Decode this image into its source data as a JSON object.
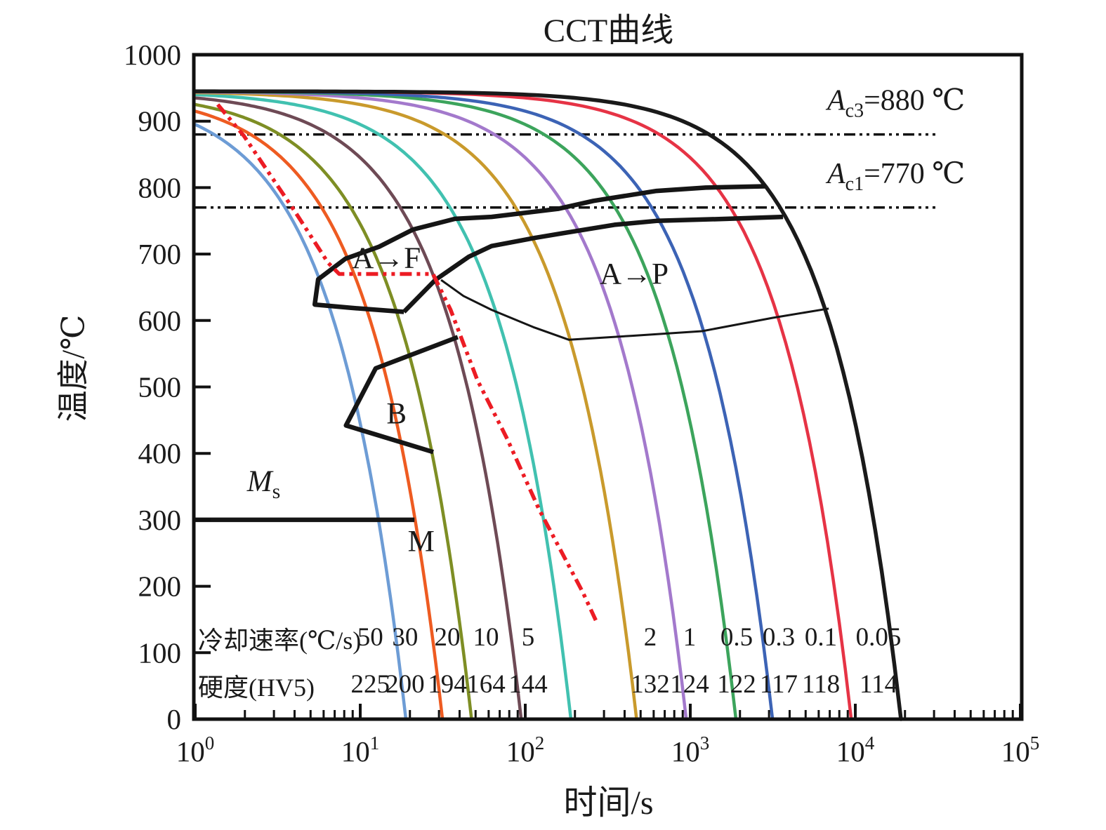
{
  "title": "CCT曲线",
  "chart_data": {
    "type": "line",
    "title": "CCT曲线",
    "xlabel": "时间/s",
    "ylabel": "温度/℃",
    "x_scale": "log",
    "xlim": [
      1,
      100000
    ],
    "ylim": [
      0,
      1000
    ],
    "y_tick_step": 100,
    "x_tick_exponents": [
      0,
      1,
      2,
      3,
      4,
      5
    ],
    "grid": false,
    "legend_position": "none",
    "initial_temperature_c": 945,
    "reference_lines": [
      {
        "id": "Ac3",
        "label_main": "A",
        "label_sub": "c3",
        "label_rest": "=880 ℃",
        "temperature_c": 880
      },
      {
        "id": "Ac1",
        "label_main": "A",
        "label_sub": "c1",
        "label_rest": "=770 ℃",
        "temperature_c": 770
      }
    ],
    "rate_row_label": "冷却速率(℃/s)",
    "hardness_row_label": "硬度(HV5)",
    "cooling_curves": [
      {
        "rate_c_per_s": 50,
        "rate_display": "50",
        "hardness_hv5": "225",
        "color": "#6D9CD5",
        "label_t_s": 11.5
      },
      {
        "rate_c_per_s": 30,
        "rate_display": "30",
        "hardness_hv5": "200",
        "color": "#EE5B21",
        "label_t_s": 18.7
      },
      {
        "rate_c_per_s": 20,
        "rate_display": "20",
        "hardness_hv5": "194",
        "color": "#7E8E24",
        "label_t_s": 33.7
      },
      {
        "rate_c_per_s": 10,
        "rate_display": "10",
        "hardness_hv5": "164",
        "color": "#6E4A55",
        "label_t_s": 57.8
      },
      {
        "rate_c_per_s": 5,
        "rate_display": "5",
        "hardness_hv5": "144",
        "color": "#41C1B0",
        "label_t_s": 104
      },
      {
        "rate_c_per_s": 2,
        "rate_display": "2",
        "hardness_hv5": "132",
        "color": "#C99A2C",
        "label_t_s": 572
      },
      {
        "rate_c_per_s": 1,
        "rate_display": "1",
        "hardness_hv5": "124",
        "color": "#A379CC",
        "label_t_s": 990
      },
      {
        "rate_c_per_s": 0.5,
        "rate_display": "0.5",
        "hardness_hv5": "122",
        "color": "#3CA45C",
        "label_t_s": 1910
      },
      {
        "rate_c_per_s": 0.3,
        "rate_display": "0.3",
        "hardness_hv5": "117",
        "color": "#3C63B5",
        "label_t_s": 3437
      },
      {
        "rate_c_per_s": 0.1,
        "rate_display": "0.1",
        "hardness_hv5": "118",
        "color": "#E63345",
        "label_t_s": 6188
      },
      {
        "rate_c_per_s": 0.05,
        "rate_display": "0.05",
        "hardness_hv5": "114",
        "color": "#1A1A1A",
        "label_t_s": 13820
      }
    ],
    "phase_boundaries": [
      {
        "name": "ferrite-start",
        "width": "thick",
        "points_t_T": [
          [
            18.4,
            613
          ],
          [
            8.8,
            619
          ],
          [
            5.3,
            624
          ],
          [
            5.56,
            662
          ],
          [
            8.14,
            693
          ],
          [
            13,
            711
          ],
          [
            20.9,
            737
          ],
          [
            37.5,
            753
          ],
          [
            62.5,
            756
          ],
          [
            158,
            768
          ],
          [
            259,
            780
          ],
          [
            625,
            795
          ],
          [
            1240,
            800
          ],
          [
            2850,
            802
          ]
        ]
      },
      {
        "name": "pearlite-start",
        "width": "thick",
        "points_t_T": [
          [
            18.4,
            613
          ],
          [
            28.5,
            661
          ],
          [
            45.5,
            696
          ],
          [
            62.5,
            712
          ],
          [
            112,
            724
          ],
          [
            166,
            731
          ],
          [
            347,
            744
          ],
          [
            625,
            750
          ],
          [
            1670,
            753
          ],
          [
            3650,
            756
          ]
        ]
      },
      {
        "name": "pearlite-finish",
        "width": "thin",
        "points_t_T": [
          [
            30.9,
            661
          ],
          [
            42.2,
            637
          ],
          [
            62.5,
            616
          ],
          [
            112,
            590
          ],
          [
            184,
            571
          ],
          [
            444,
            577
          ],
          [
            1180,
            584
          ],
          [
            3160,
            604
          ],
          [
            6900,
            618
          ]
        ]
      },
      {
        "name": "bainite-boundary",
        "width": "thick",
        "points_t_T": [
          [
            39,
            575
          ],
          [
            12.4,
            528
          ],
          [
            8.2,
            442
          ],
          [
            27.7,
            402
          ]
        ]
      },
      {
        "name": "martensite-start-line",
        "width": "thick",
        "points_t_T": [
          [
            1,
            300
          ],
          [
            21.3,
            300
          ]
        ]
      }
    ],
    "critical_cooling_curve": {
      "color": "#EC1C24",
      "style": "dash-dot-dot",
      "points_t_T": [
        [
          1.37,
          925
        ],
        [
          1.97,
          878
        ],
        [
          4.02,
          764
        ],
        [
          6.38,
          687
        ],
        [
          7.45,
          670
        ],
        [
          27.6,
          670
        ],
        [
          35.3,
          616
        ],
        [
          51.3,
          510
        ],
        [
          77.7,
          422
        ],
        [
          121,
          316
        ],
        [
          223,
          191
        ],
        [
          272,
          145
        ]
      ]
    },
    "region_labels": [
      {
        "text": "A→F",
        "t_s": 14.4,
        "temperature_c": 695,
        "italic": false,
        "sub": ""
      },
      {
        "text": "A→P",
        "t_s": 457,
        "temperature_c": 671,
        "italic": false,
        "sub": ""
      },
      {
        "text": "B",
        "t_s": 16.6,
        "temperature_c": 461,
        "italic": false,
        "sub": ""
      },
      {
        "text": "M",
        "t_s": 23.4,
        "temperature_c": 269,
        "italic": false,
        "sub": ""
      },
      {
        "text": "M",
        "t_s": 2.6,
        "temperature_c": 359,
        "italic": true,
        "sub": "s"
      }
    ]
  }
}
